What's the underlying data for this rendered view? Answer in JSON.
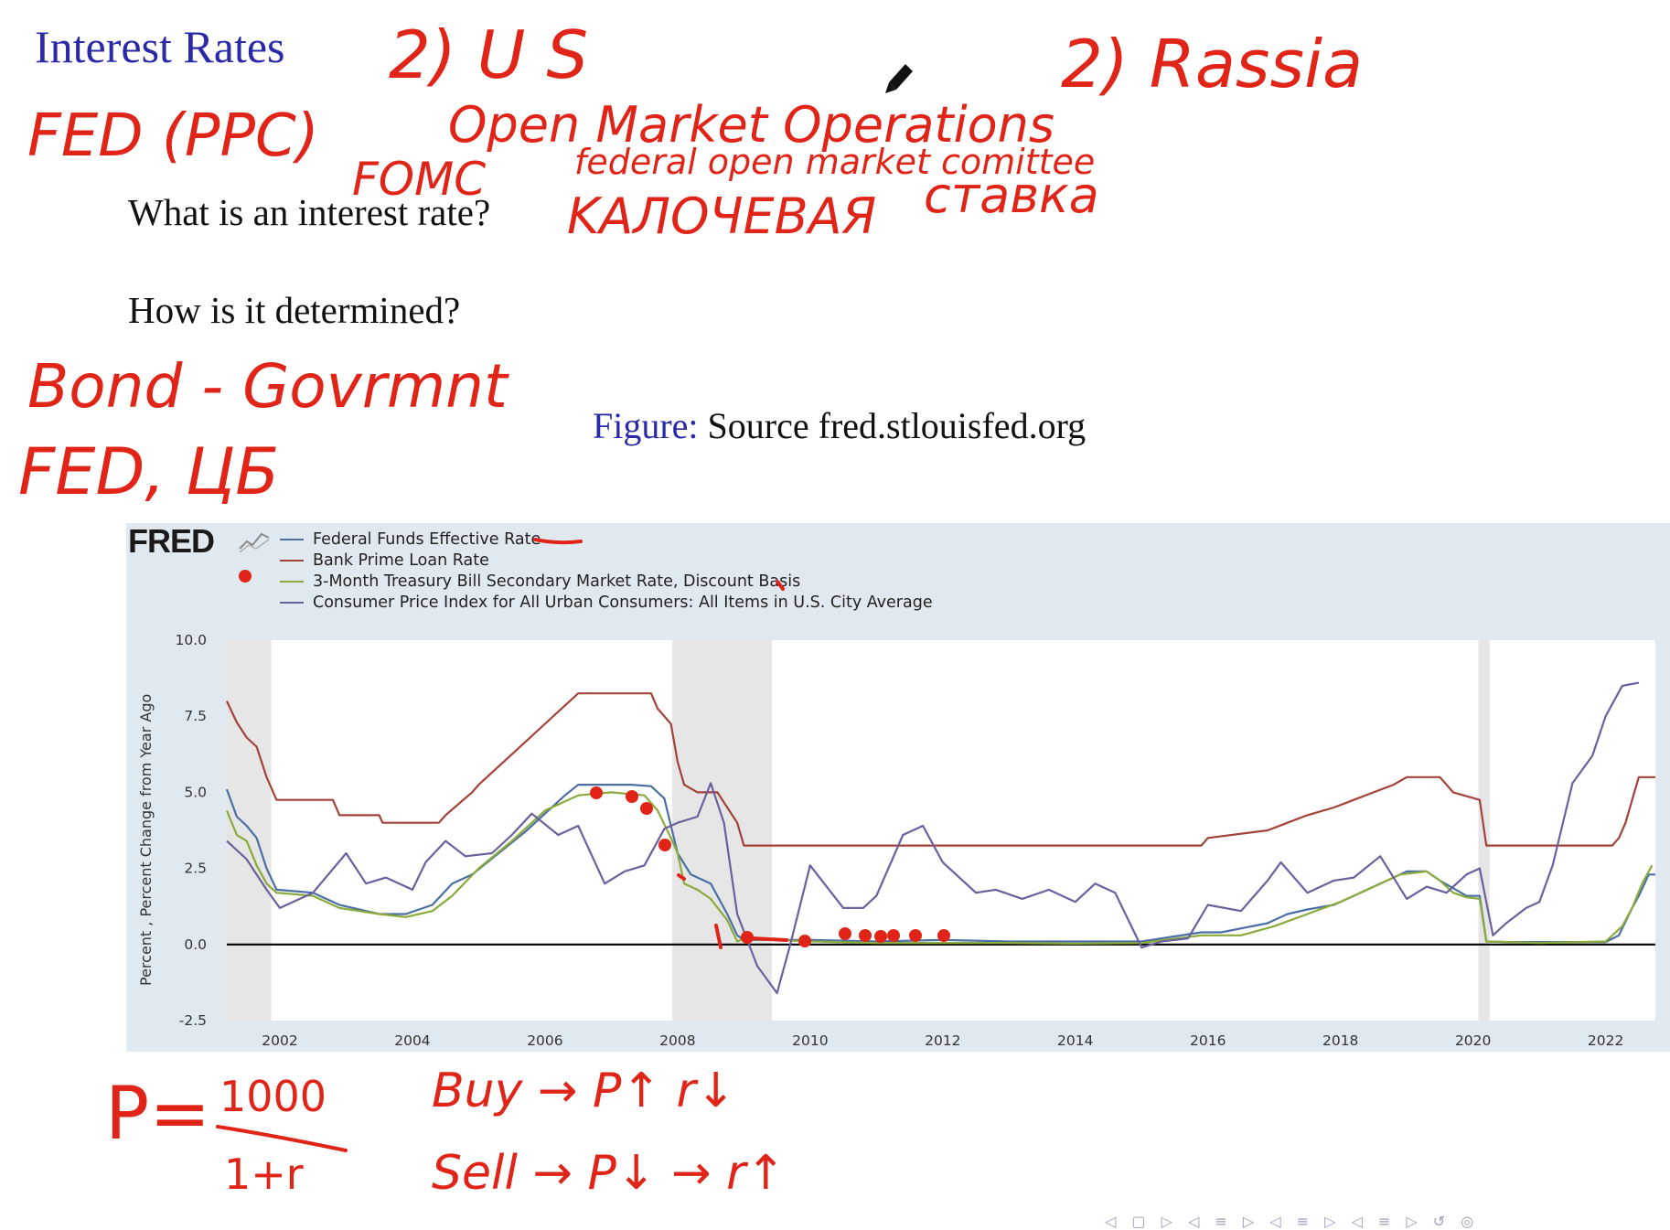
{
  "slide": {
    "title": "Interest Rates",
    "question1": "What is an interest rate?",
    "question2": "How is it determined?",
    "caption_label": "Figure:",
    "caption_text": " Source fred.stlouisfed.org"
  },
  "fred": {
    "logo": "FRED"
  },
  "handwriting": {
    "color": "#e02418",
    "lines": [
      "2) U S",
      "2) Rassia",
      "FED (PPC)",
      "Open Market Operations",
      "FOMC",
      "federal open market comittee",
      "KAЛOЧЕВАЯ",
      "ставка",
      "Bond - Govrmnt",
      "FED, ЦБ",
      "P = 1000 / 1+r",
      "Buy → P ↑ r↓",
      "Sell → P↓ → r↑"
    ]
  },
  "chart_data": {
    "type": "line",
    "title": "",
    "xlabel": "",
    "ylabel": "Percent , Percent Change from Year Ago",
    "xlim": [
      2001.2,
      2022.75
    ],
    "ylim": [
      -2.5,
      10.0
    ],
    "y_ticks": [
      "10.0",
      "7.5",
      "5.0",
      "2.5",
      "0.0",
      "-2.5"
    ],
    "y_tick_values": [
      10.0,
      7.5,
      5.0,
      2.5,
      0.0,
      -2.5
    ],
    "x_ticks": [
      "2002",
      "2004",
      "2006",
      "2008",
      "2010",
      "2012",
      "2014",
      "2016",
      "2018",
      "2020",
      "2022"
    ],
    "x_tick_values": [
      2002,
      2004,
      2006,
      2008,
      2010,
      2012,
      2014,
      2016,
      2018,
      2020,
      2022
    ],
    "recessions": [
      [
        2001.2,
        2001.87
      ],
      [
        2007.92,
        2009.42
      ],
      [
        2020.08,
        2020.25
      ]
    ],
    "zero_line": true,
    "legend_position": "top-left",
    "series": [
      {
        "name": "Federal Funds Effective Rate",
        "color": "#4b6fa5",
        "x": [
          2001.2,
          2001.35,
          2001.5,
          2001.65,
          2001.8,
          2001.95,
          2002.5,
          2002.9,
          2003.5,
          2003.9,
          2004.3,
          2004.6,
          2004.9,
          2005.3,
          2005.7,
          2006.0,
          2006.3,
          2006.5,
          2006.8,
          2007.3,
          2007.6,
          2007.8,
          2008.0,
          2008.2,
          2008.5,
          2008.75,
          2008.9,
          2009.0,
          2009.5,
          2010.0,
          2011.0,
          2012.0,
          2013.0,
          2014.0,
          2015.0,
          2015.9,
          2016.2,
          2016.9,
          2017.2,
          2017.5,
          2017.9,
          2018.2,
          2018.5,
          2018.8,
          2019.0,
          2019.3,
          2019.5,
          2019.7,
          2019.9,
          2020.1,
          2020.2,
          2020.5,
          2021.0,
          2021.5,
          2022.0,
          2022.2,
          2022.4,
          2022.5,
          2022.65,
          2022.75
        ],
        "y": [
          5.1,
          4.2,
          3.9,
          3.5,
          2.5,
          1.8,
          1.7,
          1.3,
          1.0,
          1.0,
          1.3,
          2.0,
          2.3,
          3.0,
          3.7,
          4.3,
          4.9,
          5.25,
          5.25,
          5.25,
          5.2,
          4.8,
          3.0,
          2.3,
          2.0,
          1.0,
          0.3,
          0.15,
          0.15,
          0.15,
          0.1,
          0.15,
          0.1,
          0.1,
          0.1,
          0.4,
          0.4,
          0.7,
          1.0,
          1.15,
          1.3,
          1.6,
          1.9,
          2.2,
          2.4,
          2.4,
          2.1,
          1.85,
          1.6,
          1.6,
          0.1,
          0.08,
          0.08,
          0.08,
          0.08,
          0.3,
          1.2,
          1.6,
          2.3,
          2.3
        ]
      },
      {
        "name": "Bank Prime Loan Rate",
        "color": "#a34239",
        "x": [
          2001.2,
          2001.35,
          2001.5,
          2001.65,
          2001.8,
          2001.95,
          2002.8,
          2002.9,
          2003.5,
          2003.55,
          2004.4,
          2004.5,
          2004.9,
          2005.0,
          2005.5,
          2006.0,
          2006.5,
          2007.6,
          2007.7,
          2007.9,
          2008.0,
          2008.1,
          2008.3,
          2008.6,
          2008.9,
          2009.0,
          2015.9,
          2016.0,
          2016.9,
          2017.2,
          2017.5,
          2017.9,
          2018.2,
          2018.5,
          2018.8,
          2019.0,
          2019.5,
          2019.6,
          2019.7,
          2020.1,
          2020.2,
          2022.1,
          2022.2,
          2022.3,
          2022.4,
          2022.5,
          2022.75
        ],
        "y": [
          8.0,
          7.3,
          6.8,
          6.5,
          5.5,
          4.75,
          4.75,
          4.25,
          4.25,
          4.0,
          4.0,
          4.25,
          5.0,
          5.25,
          6.25,
          7.25,
          8.25,
          8.25,
          7.75,
          7.25,
          6.0,
          5.25,
          5.0,
          5.0,
          4.0,
          3.25,
          3.25,
          3.5,
          3.75,
          4.0,
          4.25,
          4.5,
          4.75,
          5.0,
          5.25,
          5.5,
          5.5,
          5.25,
          5.0,
          4.75,
          3.25,
          3.25,
          3.5,
          4.0,
          4.75,
          5.5,
          5.5
        ]
      },
      {
        "name": "3-Month Treasury Bill Secondary Market Rate, Discount Basis",
        "color": "#8aab3b",
        "x": [
          2001.2,
          2001.35,
          2001.5,
          2001.65,
          2001.8,
          2001.95,
          2002.5,
          2002.9,
          2003.5,
          2003.9,
          2004.3,
          2004.6,
          2005.0,
          2005.5,
          2006.0,
          2006.5,
          2007.0,
          2007.5,
          2007.7,
          2007.9,
          2008.0,
          2008.1,
          2008.3,
          2008.5,
          2008.75,
          2008.9,
          2009.0,
          2009.5,
          2010.0,
          2011.0,
          2012.0,
          2013.0,
          2014.0,
          2015.0,
          2015.9,
          2016.5,
          2017.0,
          2017.5,
          2018.0,
          2018.5,
          2018.9,
          2019.3,
          2019.5,
          2019.7,
          2019.9,
          2020.1,
          2020.2,
          2021.0,
          2022.0,
          2022.25,
          2022.4,
          2022.55,
          2022.7
        ],
        "y": [
          4.4,
          3.6,
          3.4,
          2.6,
          2.0,
          1.7,
          1.6,
          1.2,
          1.0,
          0.9,
          1.1,
          1.6,
          2.5,
          3.4,
          4.4,
          4.9,
          5.0,
          4.9,
          4.4,
          3.5,
          3.0,
          2.0,
          1.8,
          1.5,
          0.8,
          0.1,
          0.2,
          0.15,
          0.1,
          0.05,
          0.05,
          0.05,
          0.03,
          0.05,
          0.3,
          0.3,
          0.6,
          1.0,
          1.4,
          1.9,
          2.3,
          2.4,
          2.1,
          1.7,
          1.55,
          1.5,
          0.1,
          0.05,
          0.1,
          0.6,
          1.2,
          2.0,
          2.6
        ]
      },
      {
        "name": "Consumer Price Index for All Urban Consumers: All Items in U.S. City Average",
        "color": "#6c5f9e",
        "x": [
          2001.2,
          2001.5,
          2001.8,
          2002.0,
          2002.5,
          2003.0,
          2003.3,
          2003.6,
          2004.0,
          2004.2,
          2004.5,
          2004.8,
          2005.2,
          2005.5,
          2005.8,
          2006.2,
          2006.5,
          2006.9,
          2007.2,
          2007.5,
          2007.8,
          2008.0,
          2008.3,
          2008.5,
          2008.7,
          2008.9,
          2009.2,
          2009.5,
          2009.7,
          2010.0,
          2010.5,
          2010.8,
          2011.0,
          2011.4,
          2011.7,
          2012.0,
          2012.5,
          2012.8,
          2013.2,
          2013.6,
          2014.0,
          2014.3,
          2014.6,
          2015.0,
          2015.3,
          2015.7,
          2016.0,
          2016.5,
          2016.9,
          2017.1,
          2017.5,
          2017.9,
          2018.2,
          2018.6,
          2019.0,
          2019.3,
          2019.6,
          2019.9,
          2020.1,
          2020.3,
          2020.5,
          2020.8,
          2021.0,
          2021.2,
          2021.5,
          2021.8,
          2022.0,
          2022.25,
          2022.5
        ],
        "y": [
          3.4,
          2.8,
          1.8,
          1.2,
          1.7,
          3.0,
          2.0,
          2.2,
          1.8,
          2.7,
          3.4,
          2.9,
          3.0,
          3.6,
          4.3,
          3.6,
          3.9,
          2.0,
          2.4,
          2.6,
          3.8,
          4.0,
          4.2,
          5.3,
          4.0,
          1.0,
          -0.7,
          -1.6,
          0.0,
          2.6,
          1.2,
          1.2,
          1.6,
          3.6,
          3.9,
          2.7,
          1.7,
          1.8,
          1.5,
          1.8,
          1.4,
          2.0,
          1.7,
          -0.1,
          0.1,
          0.2,
          1.3,
          1.1,
          2.1,
          2.7,
          1.7,
          2.1,
          2.2,
          2.9,
          1.5,
          1.9,
          1.7,
          2.3,
          2.5,
          0.3,
          0.7,
          1.2,
          1.4,
          2.6,
          5.3,
          6.2,
          7.5,
          8.5,
          8.6
        ]
      }
    ]
  }
}
